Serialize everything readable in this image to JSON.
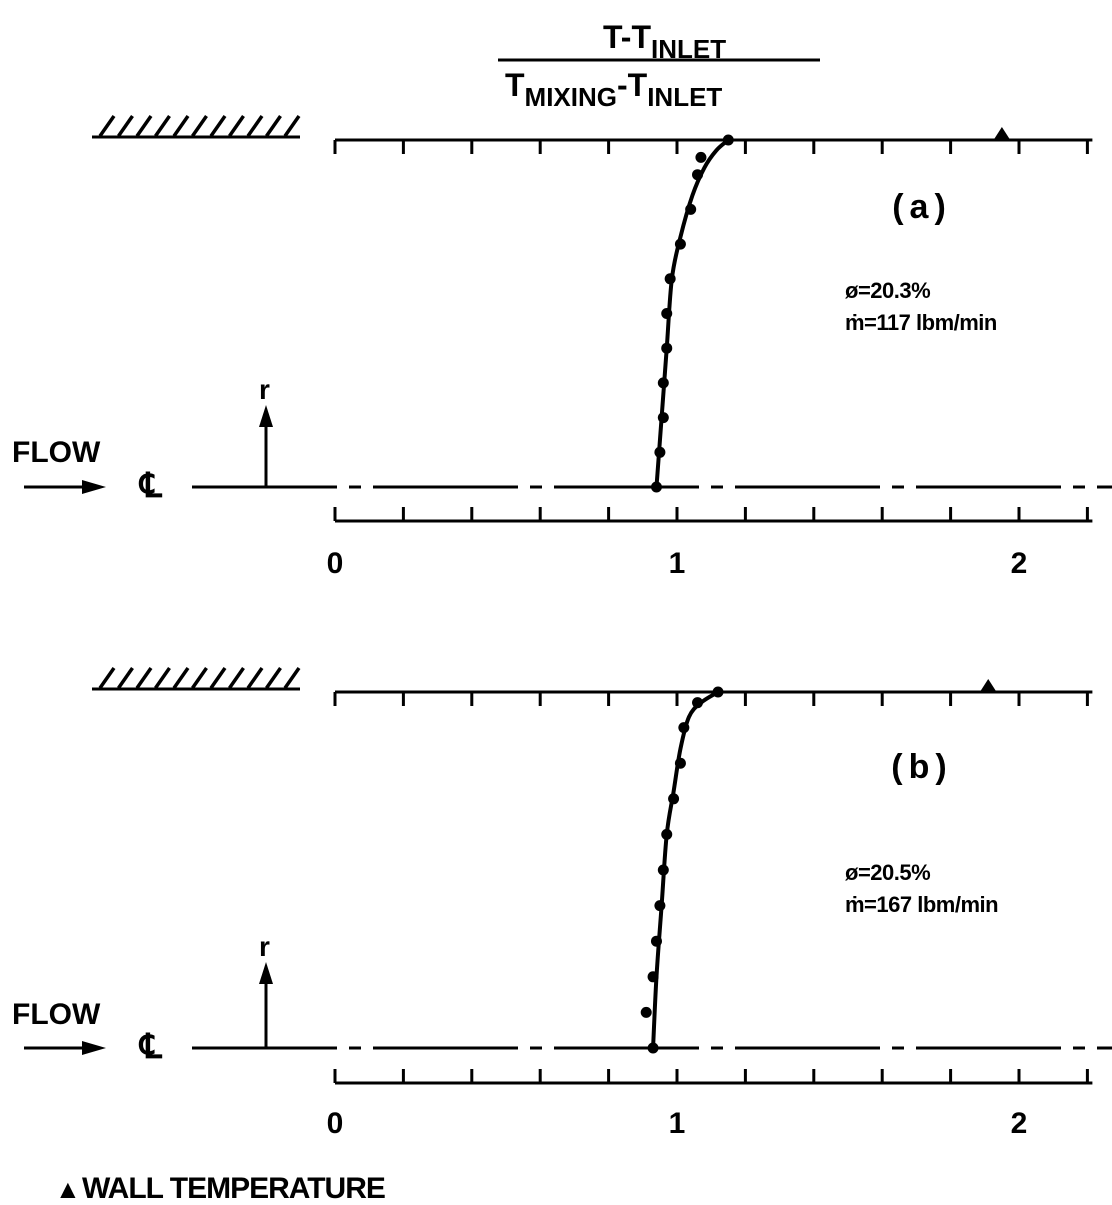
{
  "header": {
    "numerator": {
      "main": "T-T",
      "sub": "INLET"
    },
    "denominator": {
      "a": "T",
      "a_sub": "MIXING",
      "dash": "-T",
      "b_sub": "INLET"
    }
  },
  "legend": {
    "symbol": "▲",
    "label": "WALL TEMPERATURE"
  },
  "labels": {
    "flow": "FLOW",
    "centerline": "℄",
    "radial": "r"
  },
  "chart_data": [
    {
      "type": "scatter",
      "panel": "(a)",
      "conditions": [
        "ø=20.3%",
        "ṁ=117 lbm/min"
      ],
      "xlim": [
        0,
        2.2
      ],
      "ylim": [
        0,
        1
      ],
      "x_ticks": [
        0,
        1,
        2
      ],
      "x_tick_labels": [
        "0",
        "1",
        "2"
      ],
      "points": [
        [
          0.94,
          0.0
        ],
        [
          0.95,
          0.1
        ],
        [
          0.96,
          0.2
        ],
        [
          0.96,
          0.3
        ],
        [
          0.97,
          0.4
        ],
        [
          0.97,
          0.5
        ],
        [
          0.98,
          0.6
        ],
        [
          1.01,
          0.7
        ],
        [
          1.04,
          0.8
        ],
        [
          1.06,
          0.9
        ],
        [
          1.07,
          0.95
        ],
        [
          1.15,
          1.0
        ]
      ],
      "fit_curve": [
        [
          0.94,
          0.0
        ],
        [
          0.955,
          0.2
        ],
        [
          0.97,
          0.4
        ],
        [
          0.985,
          0.6
        ],
        [
          1.01,
          0.72
        ],
        [
          1.045,
          0.84
        ],
        [
          1.08,
          0.92
        ],
        [
          1.115,
          0.97
        ],
        [
          1.15,
          1.0
        ]
      ],
      "wall_temperature": [
        [
          1.95,
          1.0
        ]
      ]
    },
    {
      "type": "scatter",
      "panel": "(b)",
      "conditions": [
        "ø=20.5%",
        "ṁ=167 lbm/min"
      ],
      "xlim": [
        0,
        2.2
      ],
      "ylim": [
        0,
        1
      ],
      "x_ticks": [
        0,
        1,
        2
      ],
      "x_tick_labels": [
        "0",
        "1",
        "2"
      ],
      "points": [
        [
          0.91,
          0.1
        ],
        [
          0.93,
          0.0
        ],
        [
          0.93,
          0.2
        ],
        [
          0.94,
          0.3
        ],
        [
          0.95,
          0.4
        ],
        [
          0.96,
          0.5
        ],
        [
          0.97,
          0.6
        ],
        [
          0.99,
          0.7
        ],
        [
          1.01,
          0.8
        ],
        [
          1.02,
          0.9
        ],
        [
          1.06,
          0.97
        ],
        [
          1.12,
          1.0
        ]
      ],
      "fit_curve": [
        [
          0.93,
          0.0
        ],
        [
          0.94,
          0.2
        ],
        [
          0.955,
          0.4
        ],
        [
          0.97,
          0.6
        ],
        [
          0.99,
          0.72
        ],
        [
          1.01,
          0.84
        ],
        [
          1.035,
          0.93
        ],
        [
          1.07,
          0.97
        ],
        [
          1.12,
          1.0
        ]
      ],
      "wall_temperature": [
        [
          1.91,
          1.0
        ]
      ]
    }
  ]
}
